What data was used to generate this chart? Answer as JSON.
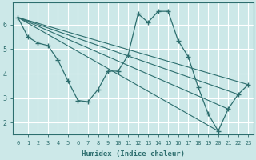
{
  "xlabel": "Humidex (Indice chaleur)",
  "bg_color": "#cce8e8",
  "grid_color": "#ffffff",
  "line_color": "#2d6e6e",
  "xlim": [
    -0.5,
    23.5
  ],
  "ylim": [
    1.5,
    6.9
  ],
  "xticks": [
    0,
    1,
    2,
    3,
    4,
    5,
    6,
    7,
    8,
    9,
    10,
    11,
    12,
    13,
    14,
    15,
    16,
    17,
    18,
    19,
    20,
    21,
    22,
    23
  ],
  "yticks": [
    2,
    3,
    4,
    5,
    6
  ],
  "main_line": {
    "x": [
      0,
      1,
      2,
      3,
      4,
      5,
      6,
      7,
      8,
      9,
      10,
      11,
      12,
      13,
      14,
      15,
      16,
      17,
      18,
      19,
      20,
      21,
      22,
      23
    ],
    "y": [
      6.3,
      5.5,
      5.25,
      5.15,
      4.55,
      3.7,
      2.9,
      2.85,
      3.35,
      4.1,
      4.1,
      4.75,
      6.45,
      6.1,
      6.55,
      6.55,
      5.35,
      4.7,
      3.45,
      2.35,
      1.65,
      2.55,
      3.15,
      3.55
    ]
  },
  "fan_lines": [
    {
      "x0": 0,
      "y0": 6.3,
      "x1": 23,
      "y1": 3.55
    },
    {
      "x0": 0,
      "y0": 6.3,
      "x1": 22,
      "y1": 3.15
    },
    {
      "x0": 0,
      "y0": 6.3,
      "x1": 21,
      "y1": 2.55
    },
    {
      "x0": 0,
      "y0": 6.3,
      "x1": 20,
      "y1": 1.65
    }
  ]
}
